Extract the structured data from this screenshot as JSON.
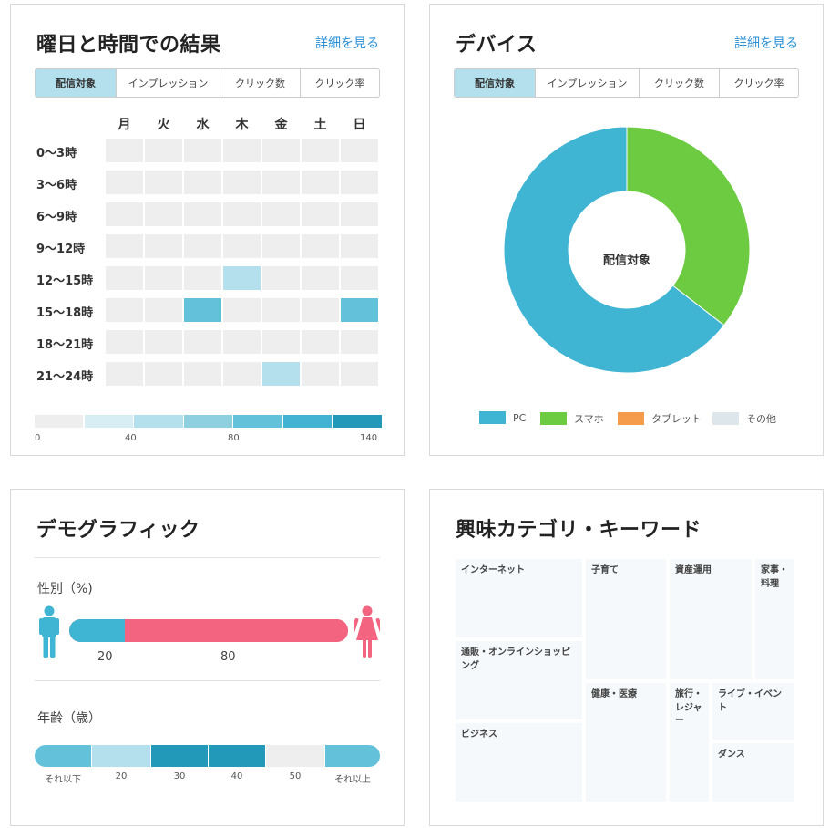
{
  "heatmap_card": {
    "title": "曜日と時間での結果",
    "detail_link": "詳細を見る",
    "tabs": [
      {
        "label": "配信対象",
        "active": true
      },
      {
        "label": "インプレッション",
        "active": false
      },
      {
        "label": "クリック数",
        "active": false
      },
      {
        "label": "クリック率",
        "active": false
      }
    ],
    "days": [
      "月",
      "火",
      "水",
      "木",
      "金",
      "土",
      "日"
    ],
    "time_slots": [
      "0〜3時",
      "3〜6時",
      "6〜9時",
      "9〜12時",
      "12〜15時",
      "15〜18時",
      "18〜21時",
      "21〜24時"
    ],
    "levels": [
      [
        0,
        0,
        0,
        0,
        0,
        0,
        0
      ],
      [
        0,
        0,
        0,
        0,
        0,
        0,
        0
      ],
      [
        0,
        0,
        0,
        0,
        0,
        0,
        0
      ],
      [
        0,
        0,
        0,
        0,
        0,
        0,
        0
      ],
      [
        0,
        0,
        0,
        2,
        0,
        0,
        0
      ],
      [
        0,
        0,
        4,
        0,
        0,
        0,
        4
      ],
      [
        0,
        0,
        0,
        0,
        0,
        0,
        0
      ],
      [
        0,
        0,
        0,
        0,
        2,
        0,
        0
      ]
    ],
    "scale_colors": [
      "#eeeeee",
      "#d7eef4",
      "#b3e0ec",
      "#8fd0e0",
      "#63c2da",
      "#42b3d3",
      "#2299b8"
    ],
    "scale_labels": [
      "0",
      "40",
      "80",
      "140"
    ]
  },
  "device_card": {
    "title": "デバイス",
    "detail_link": "詳細を見る",
    "tabs": [
      {
        "label": "配信対象",
        "active": true
      },
      {
        "label": "インプレッション",
        "active": false
      },
      {
        "label": "クリック数",
        "active": false
      },
      {
        "label": "クリック率",
        "active": false
      }
    ],
    "center_label": "配信対象",
    "legend": [
      {
        "label": "PC",
        "color": "#3fb4d3"
      },
      {
        "label": "スマホ",
        "color": "#6ccb41"
      },
      {
        "label": "タブレット",
        "color": "#f59c4c"
      },
      {
        "label": "その他",
        "color": "#dde6ea"
      }
    ]
  },
  "chart_data": {
    "type": "pie",
    "categories": [
      "PC",
      "スマホ",
      "タブレット",
      "その他"
    ],
    "values": [
      64.5,
      35.5,
      0,
      0
    ],
    "colors": [
      "#3fb4d3",
      "#6ccb41",
      "#f59c4c",
      "#dde6ea"
    ],
    "title": "",
    "legend_position": "bottom"
  },
  "demographic_card": {
    "title": "デモグラフィック",
    "gender_label": "性別（%)",
    "gender": {
      "male_percent": 20,
      "female_percent": 80,
      "male_value_label": "20",
      "female_value_label": "80",
      "male_color": "#3fb4d3",
      "female_color": "#f2647f"
    },
    "age_label": "年齢（歳）",
    "age_segments": [
      {
        "label": "それ以下",
        "color": "#63c2da"
      },
      {
        "label": "20",
        "color": "#b3e0ec"
      },
      {
        "label": "30",
        "color": "#2299b8"
      },
      {
        "label": "40",
        "color": "#2299b8"
      },
      {
        "label": "50",
        "color": "#eeeeee"
      },
      {
        "label": "それ以上",
        "color": "#63c2da"
      }
    ]
  },
  "interest_card": {
    "title": "興味カテゴリ・キーワード",
    "items": [
      {
        "label": "インターネット"
      },
      {
        "label": "子育て"
      },
      {
        "label": "資産運用"
      },
      {
        "label": "家事・料理"
      },
      {
        "label": "通販・オンラインショッピング"
      },
      {
        "label": "健康・医療"
      },
      {
        "label": "旅行・レジャー"
      },
      {
        "label": "ライブ・イベント"
      },
      {
        "label": "ビジネス"
      },
      {
        "label": "ダンス"
      }
    ]
  }
}
